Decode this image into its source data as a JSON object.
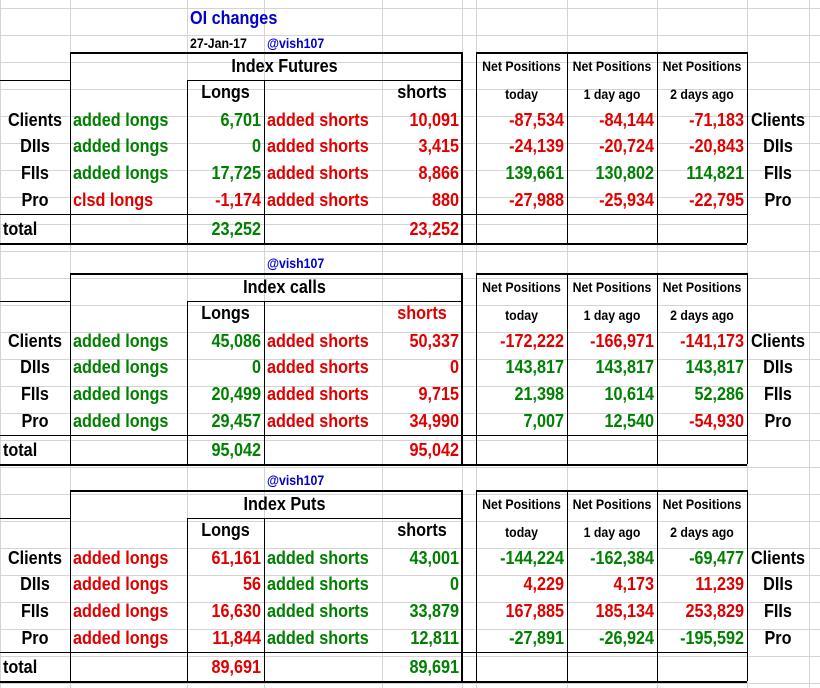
{
  "header": {
    "title": "OI changes",
    "date": "27-Jan-17",
    "handle": "@vish107"
  },
  "colors": {
    "positive": "#008000",
    "negative": "#e00000",
    "handle": "#0000cc"
  },
  "columns": {
    "longs": "Longs",
    "shorts": "shorts",
    "net_positions": "Net Positions",
    "today": "today",
    "day1": "1 day ago",
    "day2": "2 days ago"
  },
  "sections": [
    {
      "title": "Index Futures",
      "handle": "",
      "rows": [
        {
          "entity": "Clients",
          "long_label": "added longs",
          "long_color": "green",
          "long_value": "6,701",
          "short_label": "added shorts",
          "short_color": "red",
          "short_value": "10,091",
          "net": [
            {
              "v": "-87,534",
              "c": "red"
            },
            {
              "v": "-84,144",
              "c": "red"
            },
            {
              "v": "-71,183",
              "c": "red"
            }
          ]
        },
        {
          "entity": "DIIs",
          "long_label": "added longs",
          "long_color": "green",
          "long_value": "0",
          "short_label": "added shorts",
          "short_color": "red",
          "short_value": "3,415",
          "net": [
            {
              "v": "-24,139",
              "c": "red"
            },
            {
              "v": "-20,724",
              "c": "red"
            },
            {
              "v": "-20,843",
              "c": "red"
            }
          ]
        },
        {
          "entity": "FIIs",
          "long_label": "added longs",
          "long_color": "green",
          "long_value": "17,725",
          "short_label": "added shorts",
          "short_color": "red",
          "short_value": "8,866",
          "net": [
            {
              "v": "139,661",
              "c": "green"
            },
            {
              "v": "130,802",
              "c": "green"
            },
            {
              "v": "114,821",
              "c": "green"
            }
          ]
        },
        {
          "entity": "Pro",
          "long_label": "clsd longs",
          "long_color": "red",
          "long_value": "-1,174",
          "short_label": "added shorts",
          "short_color": "red",
          "short_value": "880",
          "net": [
            {
              "v": "-27,988",
              "c": "red"
            },
            {
              "v": "-25,934",
              "c": "red"
            },
            {
              "v": "-22,795",
              "c": "red"
            }
          ]
        }
      ],
      "total_label": "total",
      "total_long": "23,252",
      "total_long_color": "green",
      "total_short": "23,252",
      "total_short_color": "red"
    },
    {
      "title": "Index calls",
      "handle": "@vish107",
      "rows": [
        {
          "entity": "Clients",
          "long_label": "added longs",
          "long_color": "green",
          "long_value": "45,086",
          "short_label": "added shorts",
          "short_color": "red",
          "short_value": "50,337",
          "net": [
            {
              "v": "-172,222",
              "c": "red"
            },
            {
              "v": "-166,971",
              "c": "red"
            },
            {
              "v": "-141,173",
              "c": "red"
            }
          ]
        },
        {
          "entity": "DIIs",
          "long_label": "added longs",
          "long_color": "green",
          "long_value": "0",
          "short_label": "added shorts",
          "short_color": "red",
          "short_value": "0",
          "net": [
            {
              "v": "143,817",
              "c": "green"
            },
            {
              "v": "143,817",
              "c": "green"
            },
            {
              "v": "143,817",
              "c": "green"
            }
          ]
        },
        {
          "entity": "FIIs",
          "long_label": "added longs",
          "long_color": "green",
          "long_value": "20,499",
          "short_label": "added shorts",
          "short_color": "red",
          "short_value": "9,715",
          "net": [
            {
              "v": "21,398",
              "c": "green"
            },
            {
              "v": "10,614",
              "c": "green"
            },
            {
              "v": "52,286",
              "c": "green"
            }
          ]
        },
        {
          "entity": "Pro",
          "long_label": "added longs",
          "long_color": "green",
          "long_value": "29,457",
          "short_label": "added shorts",
          "short_color": "red",
          "short_value": "34,990",
          "net": [
            {
              "v": "7,007",
              "c": "green"
            },
            {
              "v": "12,540",
              "c": "green"
            },
            {
              "v": "-54,930",
              "c": "red"
            }
          ]
        }
      ],
      "total_label": "total",
      "total_long": "95,042",
      "total_long_color": "green",
      "total_short": "95,042",
      "total_short_color": "red"
    },
    {
      "title": "Index Puts",
      "handle": "@vish107",
      "rows": [
        {
          "entity": "Clients",
          "long_label": "added longs",
          "long_color": "red",
          "long_value": "61,161",
          "short_label": "added shorts",
          "short_color": "green",
          "short_value": "43,001",
          "net": [
            {
              "v": "-144,224",
              "c": "green"
            },
            {
              "v": "-162,384",
              "c": "green"
            },
            {
              "v": "-69,477",
              "c": "green"
            }
          ]
        },
        {
          "entity": "DIIs",
          "long_label": "added longs",
          "long_color": "red",
          "long_value": "56",
          "short_label": "added shorts",
          "short_color": "green",
          "short_value": "0",
          "net": [
            {
              "v": "4,229",
              "c": "red"
            },
            {
              "v": "4,173",
              "c": "red"
            },
            {
              "v": "11,239",
              "c": "red"
            }
          ]
        },
        {
          "entity": "FIIs",
          "long_label": "added longs",
          "long_color": "red",
          "long_value": "16,630",
          "short_label": "added shorts",
          "short_color": "green",
          "short_value": "33,879",
          "net": [
            {
              "v": "167,885",
              "c": "red"
            },
            {
              "v": "185,134",
              "c": "red"
            },
            {
              "v": "253,829",
              "c": "red"
            }
          ]
        },
        {
          "entity": "Pro",
          "long_label": "added longs",
          "long_color": "red",
          "long_value": "11,844",
          "short_label": "added shorts",
          "short_color": "green",
          "short_value": "12,811",
          "net": [
            {
              "v": "-27,891",
              "c": "green"
            },
            {
              "v": "-26,924",
              "c": "green"
            },
            {
              "v": "-195,592",
              "c": "green"
            }
          ]
        }
      ],
      "total_label": "total",
      "total_long": "89,691",
      "total_long_color": "red",
      "total_short": "89,691",
      "total_short_color": "green"
    }
  ]
}
